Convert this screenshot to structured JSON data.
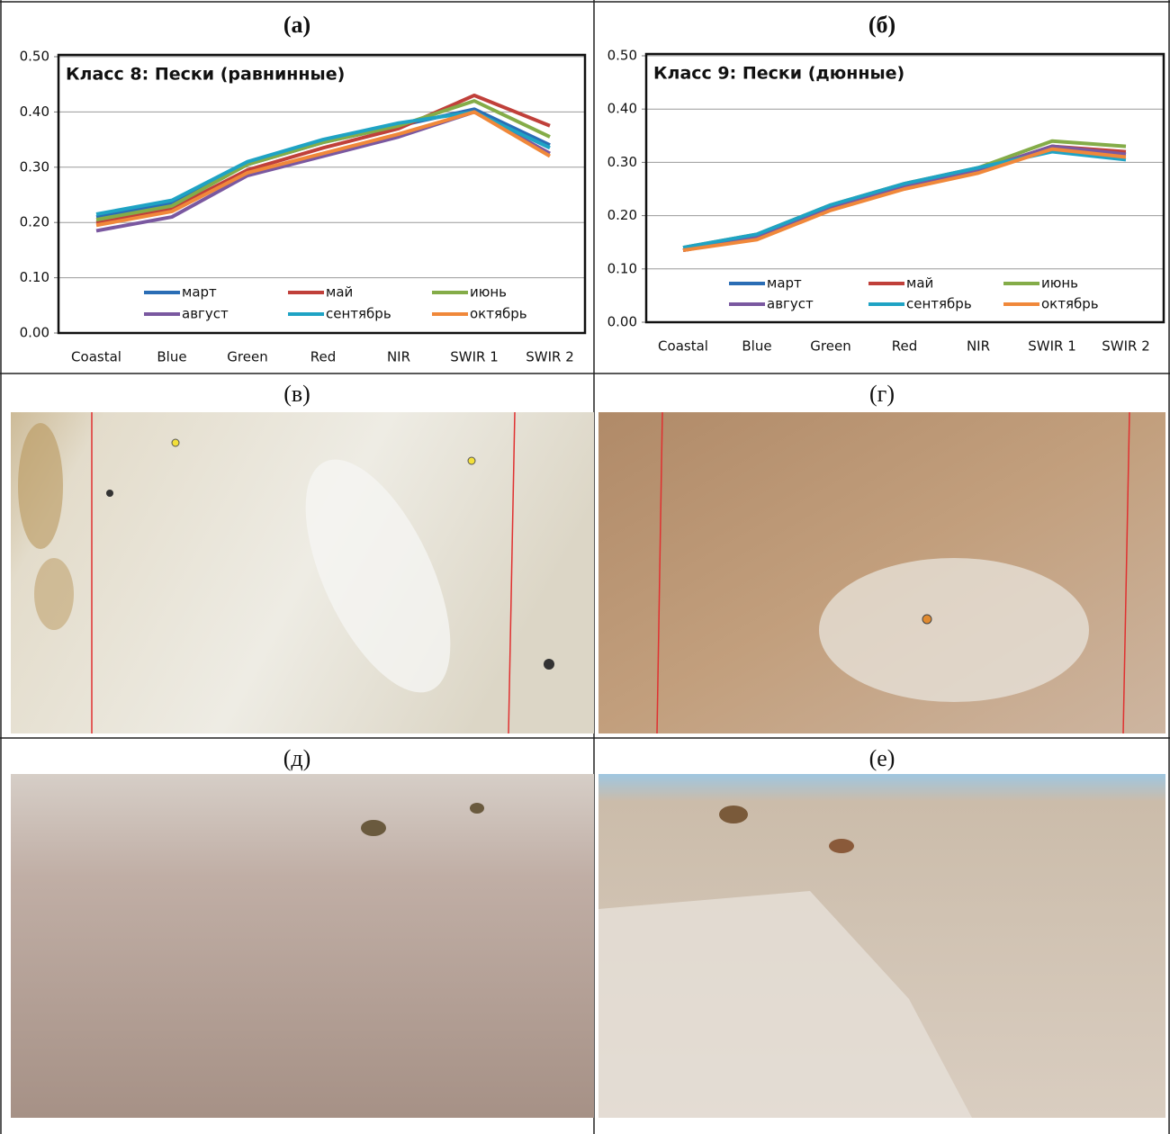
{
  "panels": [
    "(а)",
    "(б)",
    "(в)",
    "(г)",
    "(д)",
    "(е)"
  ],
  "chart_data": [
    {
      "type": "line",
      "title": "Класс 8: Пески (равнинные)",
      "categories": [
        "Coastal",
        "Blue",
        "Green",
        "Red",
        "NIR",
        "SWIR 1",
        "SWIR 2"
      ],
      "ylim": [
        0,
        0.5
      ],
      "yticks": [
        {
          "value": 0,
          "label": "0.00"
        },
        {
          "value": 0.1,
          "label": "0.10"
        },
        {
          "value": 0.2,
          "label": "0.20"
        },
        {
          "value": 0.3,
          "label": "0.30"
        },
        {
          "value": 0.4,
          "label": "0.40"
        },
        {
          "value": 0.5,
          "label": "0.50"
        }
      ],
      "grid": true,
      "series": [
        {
          "name": "март",
          "color": "#2a6db5",
          "values": [
            0.21,
            0.235,
            0.305,
            0.345,
            0.375,
            0.405,
            0.34
          ]
        },
        {
          "name": "май",
          "color": "#c0403a",
          "values": [
            0.2,
            0.225,
            0.295,
            0.335,
            0.37,
            0.43,
            0.375
          ]
        },
        {
          "name": "июнь",
          "color": "#84ac48",
          "values": [
            0.205,
            0.23,
            0.305,
            0.345,
            0.375,
            0.42,
            0.355
          ]
        },
        {
          "name": "август",
          "color": "#7a58a0",
          "values": [
            0.185,
            0.21,
            0.285,
            0.32,
            0.355,
            0.4,
            0.325
          ]
        },
        {
          "name": "сентябрь",
          "color": "#1fa3c4",
          "values": [
            0.215,
            0.24,
            0.31,
            0.35,
            0.38,
            0.4,
            0.335
          ]
        },
        {
          "name": "октябрь",
          "color": "#f0883a",
          "values": [
            0.195,
            0.22,
            0.29,
            0.325,
            0.36,
            0.4,
            0.32
          ]
        }
      ]
    },
    {
      "type": "line",
      "title": "Класс 9: Пески (дюнные)",
      "categories": [
        "Coastal",
        "Blue",
        "Green",
        "Red",
        "NIR",
        "SWIR 1",
        "SWIR 2"
      ],
      "ylim": [
        0,
        0.5
      ],
      "yticks": [
        {
          "value": 0,
          "label": "0.00"
        },
        {
          "value": 0.1,
          "label": "0.10"
        },
        {
          "value": 0.2,
          "label": "0.20"
        },
        {
          "value": 0.3,
          "label": "0.30"
        },
        {
          "value": 0.4,
          "label": "0.40"
        },
        {
          "value": 0.5,
          "label": "0.50"
        }
      ],
      "grid": true,
      "series": [
        {
          "name": "март",
          "color": "#2a6db5",
          "values": [
            0.135,
            0.16,
            0.215,
            0.255,
            0.285,
            0.33,
            0.315
          ]
        },
        {
          "name": "май",
          "color": "#c0403a",
          "values": [
            0.135,
            0.16,
            0.215,
            0.255,
            0.285,
            0.33,
            0.32
          ]
        },
        {
          "name": "июнь",
          "color": "#84ac48",
          "values": [
            0.14,
            0.165,
            0.22,
            0.26,
            0.29,
            0.34,
            0.33
          ]
        },
        {
          "name": "август",
          "color": "#7a58a0",
          "values": [
            0.135,
            0.16,
            0.215,
            0.255,
            0.285,
            0.33,
            0.315
          ]
        },
        {
          "name": "сентябрь",
          "color": "#1fa3c4",
          "values": [
            0.14,
            0.165,
            0.22,
            0.26,
            0.29,
            0.32,
            0.305
          ]
        },
        {
          "name": "октябрь",
          "color": "#f0883a",
          "values": [
            0.135,
            0.155,
            0.21,
            0.25,
            0.28,
            0.325,
            0.31
          ]
        }
      ]
    }
  ]
}
